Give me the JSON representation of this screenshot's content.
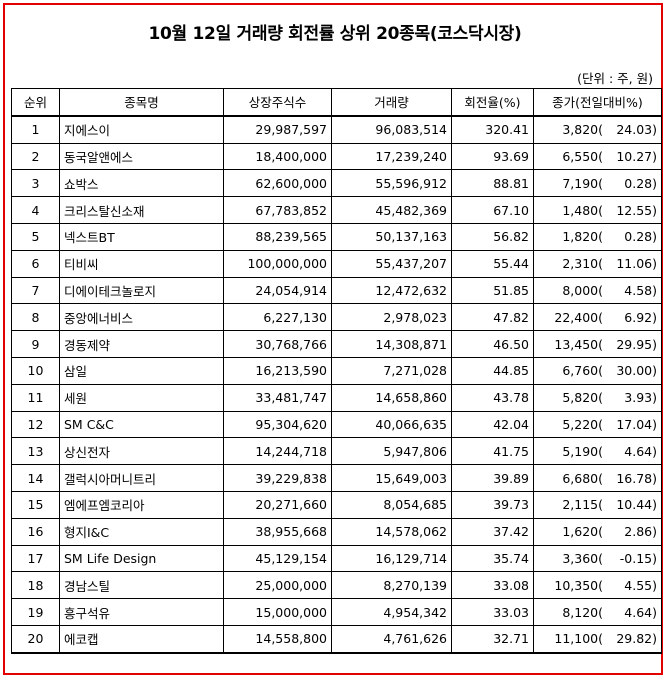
{
  "title": "10월 12일 거래량 회전률 상위 20종목(코스닥시장)",
  "unit": "(단위 : 주, 원)",
  "headers": {
    "rank": "순위",
    "name": "종목명",
    "shares": "상장주식수",
    "volume": "거래량",
    "turnover": "회전율(%)",
    "price": "종가(전일대비%)"
  },
  "rows": [
    {
      "rank": "1",
      "name": "지에스이",
      "shares": "29,987,597",
      "volume": "96,083,514",
      "turnover": "320.41",
      "price": "3,820(",
      "change": "24.03)"
    },
    {
      "rank": "2",
      "name": "동국알앤에스",
      "shares": "18,400,000",
      "volume": "17,239,240",
      "turnover": "93.69",
      "price": "6,550(",
      "change": "10.27)"
    },
    {
      "rank": "3",
      "name": "쇼박스",
      "shares": "62,600,000",
      "volume": "55,596,912",
      "turnover": "88.81",
      "price": "7,190(",
      "change": "0.28)"
    },
    {
      "rank": "4",
      "name": "크리스탈신소재",
      "shares": "67,783,852",
      "volume": "45,482,369",
      "turnover": "67.10",
      "price": "1,480(",
      "change": "12.55)"
    },
    {
      "rank": "5",
      "name": "넥스트BT",
      "shares": "88,239,565",
      "volume": "50,137,163",
      "turnover": "56.82",
      "price": "1,820(",
      "change": "0.28)"
    },
    {
      "rank": "6",
      "name": "티비씨",
      "shares": "100,000,000",
      "volume": "55,437,207",
      "turnover": "55.44",
      "price": "2,310(",
      "change": "11.06)"
    },
    {
      "rank": "7",
      "name": "디에이테크놀로지",
      "shares": "24,054,914",
      "volume": "12,472,632",
      "turnover": "51.85",
      "price": "8,000(",
      "change": "4.58)"
    },
    {
      "rank": "8",
      "name": "중앙에너비스",
      "shares": "6,227,130",
      "volume": "2,978,023",
      "turnover": "47.82",
      "price": "22,400(",
      "change": "6.92)"
    },
    {
      "rank": "9",
      "name": "경동제약",
      "shares": "30,768,766",
      "volume": "14,308,871",
      "turnover": "46.50",
      "price": "13,450(",
      "change": "29.95)"
    },
    {
      "rank": "10",
      "name": "삼일",
      "shares": "16,213,590",
      "volume": "7,271,028",
      "turnover": "44.85",
      "price": "6,760(",
      "change": "30.00)"
    },
    {
      "rank": "11",
      "name": "세원",
      "shares": "33,481,747",
      "volume": "14,658,860",
      "turnover": "43.78",
      "price": "5,820(",
      "change": "3.93)"
    },
    {
      "rank": "12",
      "name": "SM C&C",
      "shares": "95,304,620",
      "volume": "40,066,635",
      "turnover": "42.04",
      "price": "5,220(",
      "change": "17.04)"
    },
    {
      "rank": "13",
      "name": "상신전자",
      "shares": "14,244,718",
      "volume": "5,947,806",
      "turnover": "41.75",
      "price": "5,190(",
      "change": "4.64)"
    },
    {
      "rank": "14",
      "name": "갤럭시아머니트리",
      "shares": "39,229,838",
      "volume": "15,649,003",
      "turnover": "39.89",
      "price": "6,680(",
      "change": "16.78)"
    },
    {
      "rank": "15",
      "name": "엠에프엠코리아",
      "shares": "20,271,660",
      "volume": "8,054,685",
      "turnover": "39.73",
      "price": "2,115(",
      "change": "10.44)"
    },
    {
      "rank": "16",
      "name": "형지I&C",
      "shares": "38,955,668",
      "volume": "14,578,062",
      "turnover": "37.42",
      "price": "1,620(",
      "change": "2.86)"
    },
    {
      "rank": "17",
      "name": "SM Life Design",
      "shares": "45,129,154",
      "volume": "16,129,714",
      "turnover": "35.74",
      "price": "3,360(",
      "change": "-0.15)"
    },
    {
      "rank": "18",
      "name": "경남스틸",
      "shares": "25,000,000",
      "volume": "8,270,139",
      "turnover": "33.08",
      "price": "10,350(",
      "change": "4.55)"
    },
    {
      "rank": "19",
      "name": "흥구석유",
      "shares": "15,000,000",
      "volume": "4,954,342",
      "turnover": "33.03",
      "price": "8,120(",
      "change": "4.64)"
    },
    {
      "rank": "20",
      "name": "에코캡",
      "shares": "14,558,800",
      "volume": "4,761,626",
      "turnover": "32.71",
      "price": "11,100(",
      "change": "29.82)"
    }
  ]
}
